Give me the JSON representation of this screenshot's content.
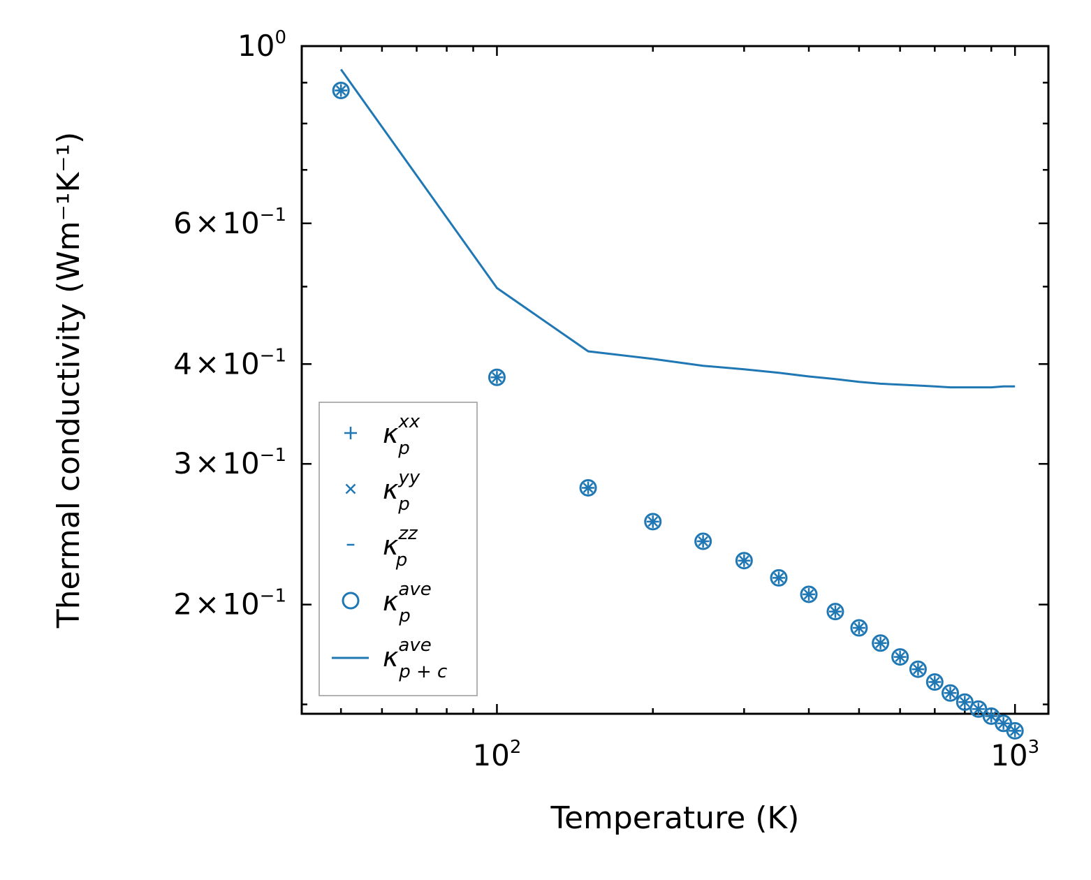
{
  "chart_data": {
    "type": "scatter",
    "xlabel": "Temperature (K)",
    "ylabel": "Thermal conductivity (Wm⁻¹K⁻¹)",
    "xscale": "log",
    "yscale": "log",
    "xlim": [
      42,
      1160
    ],
    "ylim": [
      0.146,
      1.0
    ],
    "grid": false,
    "legend_position": "lower-left",
    "color": "#1f77b4",
    "x_ticks": [
      {
        "value": 100,
        "base": "10",
        "exp": "2"
      },
      {
        "value": 1000,
        "base": "10",
        "exp": "3"
      }
    ],
    "y_ticks": [
      {
        "value": 1.0,
        "mant": "",
        "base": "10",
        "exp": "0"
      },
      {
        "value": 0.6,
        "mant": "6",
        "base": "10",
        "exp": "−1"
      },
      {
        "value": 0.4,
        "mant": "4",
        "base": "10",
        "exp": "−1"
      },
      {
        "value": 0.3,
        "mant": "3",
        "base": "10",
        "exp": "−1"
      },
      {
        "value": 0.2,
        "mant": "2",
        "base": "10",
        "exp": "−1"
      }
    ],
    "x": [
      50,
      100,
      150,
      200,
      250,
      300,
      350,
      400,
      450,
      500,
      550,
      600,
      650,
      700,
      750,
      800,
      850,
      900,
      950,
      1000
    ],
    "series": [
      {
        "name": "κ_p^xx",
        "base": "κ",
        "sub": "p",
        "sup": "xx",
        "marker": "plus",
        "values": [
          0.88,
          0.385,
          0.28,
          0.254,
          0.24,
          0.227,
          0.216,
          0.206,
          0.196,
          0.187,
          0.179,
          0.172,
          0.166,
          0.16,
          0.155,
          0.151,
          0.148,
          0.145,
          0.142,
          0.139
        ]
      },
      {
        "name": "κ_p^yy",
        "base": "κ",
        "sub": "p",
        "sup": "yy",
        "marker": "x",
        "values": [
          0.88,
          0.385,
          0.28,
          0.254,
          0.24,
          0.227,
          0.216,
          0.206,
          0.196,
          0.187,
          0.179,
          0.172,
          0.166,
          0.16,
          0.155,
          0.151,
          0.148,
          0.145,
          0.142,
          0.139
        ]
      },
      {
        "name": "κ_p^zz",
        "base": "κ",
        "sub": "p",
        "sup": "zz",
        "marker": "hline",
        "values": [
          0.88,
          0.385,
          0.28,
          0.254,
          0.24,
          0.227,
          0.216,
          0.206,
          0.196,
          0.187,
          0.179,
          0.172,
          0.166,
          0.16,
          0.155,
          0.151,
          0.148,
          0.145,
          0.142,
          0.139
        ]
      },
      {
        "name": "κ_p^ave",
        "base": "κ",
        "sub": "p",
        "sup": "ave",
        "marker": "circle",
        "values": [
          0.88,
          0.385,
          0.28,
          0.254,
          0.24,
          0.227,
          0.216,
          0.206,
          0.196,
          0.187,
          0.179,
          0.172,
          0.166,
          0.16,
          0.155,
          0.151,
          0.148,
          0.145,
          0.142,
          0.139
        ]
      },
      {
        "name": "κ_p+c^ave",
        "base": "κ",
        "sub": "p + c",
        "sup": "ave",
        "marker": "line",
        "values": [
          0.935,
          0.498,
          0.415,
          0.406,
          0.398,
          0.394,
          0.39,
          0.386,
          0.383,
          0.38,
          0.378,
          0.377,
          0.376,
          0.375,
          0.374,
          0.374,
          0.374,
          0.374,
          0.375,
          0.375
        ]
      }
    ]
  }
}
